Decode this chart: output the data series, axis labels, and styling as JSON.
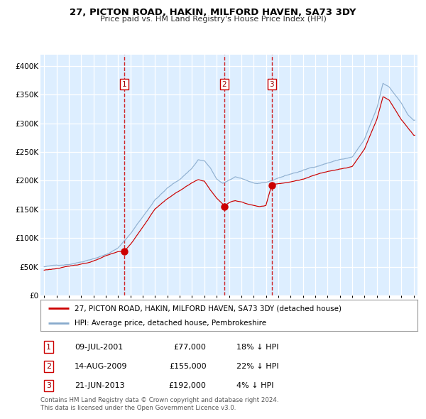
{
  "title": "27, PICTON ROAD, HAKIN, MILFORD HAVEN, SA73 3DY",
  "subtitle": "Price paid vs. HM Land Registry's House Price Index (HPI)",
  "legend_line1": "27, PICTON ROAD, HAKIN, MILFORD HAVEN, SA73 3DY (detached house)",
  "legend_line2": "HPI: Average price, detached house, Pembrokeshire",
  "transactions": [
    {
      "num": 1,
      "date": "09-JUL-2001",
      "price": 77000,
      "pct": "18%",
      "dir": "↓"
    },
    {
      "num": 2,
      "date": "14-AUG-2009",
      "price": 155000,
      "pct": "22%",
      "dir": "↓"
    },
    {
      "num": 3,
      "date": "21-JUN-2013",
      "price": 192000,
      "pct": "4%",
      "dir": "↓"
    }
  ],
  "transaction_years": [
    2001.52,
    2009.62,
    2013.47
  ],
  "sale_prices": [
    77000,
    155000,
    192000
  ],
  "copyright": "Contains HM Land Registry data © Crown copyright and database right 2024.\nThis data is licensed under the Open Government Licence v3.0.",
  "line_color_red": "#cc0000",
  "line_color_blue": "#88aacc",
  "bg_color": "#ddeeff",
  "grid_color": "#ffffff",
  "dashed_color": "#cc0000",
  "marker_color": "#cc0000",
  "box_color": "#cc0000",
  "ylim": [
    0,
    420000
  ],
  "xlim_start": 1994.7,
  "xlim_end": 2025.3,
  "hpi_anchors": {
    "1995.0": 50000,
    "1996.0": 52000,
    "1997.0": 55000,
    "1998.0": 60000,
    "1999.0": 67000,
    "2000.0": 74000,
    "2001.0": 85000,
    "2002.0": 110000,
    "2003.0": 140000,
    "2004.0": 170000,
    "2005.0": 190000,
    "2006.0": 205000,
    "2007.0": 225000,
    "2007.5": 240000,
    "2008.0": 238000,
    "2008.5": 225000,
    "2009.0": 205000,
    "2009.5": 198000,
    "2010.0": 202000,
    "2010.5": 208000,
    "2011.0": 206000,
    "2011.5": 202000,
    "2012.0": 198000,
    "2012.5": 196000,
    "2013.0": 197000,
    "2013.5": 200000,
    "2014.0": 205000,
    "2015.0": 212000,
    "2016.0": 218000,
    "2017.0": 225000,
    "2018.0": 232000,
    "2019.0": 238000,
    "2020.0": 242000,
    "2021.0": 272000,
    "2022.0": 325000,
    "2022.5": 368000,
    "2023.0": 362000,
    "2023.5": 348000,
    "2024.0": 335000,
    "2024.5": 315000,
    "2025.0": 305000
  },
  "prop_anchors": {
    "1995.0": 44000,
    "1996.0": 47000,
    "1997.0": 50000,
    "1998.0": 55000,
    "1999.0": 60000,
    "2000.0": 68000,
    "2001.0": 75000,
    "2001.52": 77000,
    "2002.0": 88000,
    "2003.0": 118000,
    "2004.0": 150000,
    "2005.0": 168000,
    "2006.0": 182000,
    "2007.0": 195000,
    "2007.5": 200000,
    "2008.0": 198000,
    "2008.5": 182000,
    "2009.0": 168000,
    "2009.5": 158000,
    "2009.62": 155000,
    "2010.0": 160000,
    "2010.5": 164000,
    "2011.0": 162000,
    "2011.5": 159000,
    "2012.0": 156000,
    "2012.5": 154000,
    "2013.0": 156000,
    "2013.47": 192000,
    "2014.0": 195000,
    "2015.0": 198000,
    "2016.0": 203000,
    "2017.0": 210000,
    "2018.0": 216000,
    "2019.0": 222000,
    "2020.0": 226000,
    "2021.0": 256000,
    "2022.0": 308000,
    "2022.5": 348000,
    "2023.0": 342000,
    "2023.5": 325000,
    "2024.0": 308000,
    "2024.5": 295000,
    "2025.0": 282000
  }
}
